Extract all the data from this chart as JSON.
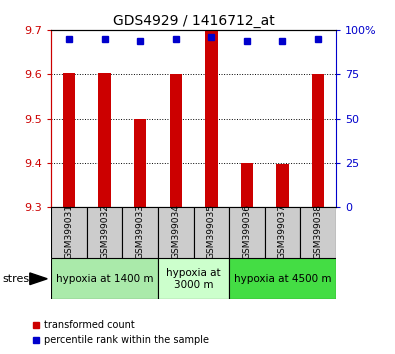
{
  "title": "GDS4929 / 1416712_at",
  "samples": [
    "GSM399031",
    "GSM399032",
    "GSM399033",
    "GSM399034",
    "GSM399035",
    "GSM399036",
    "GSM399037",
    "GSM399038"
  ],
  "transformed_counts": [
    9.604,
    9.604,
    9.498,
    9.6,
    9.697,
    9.4,
    9.398,
    9.6
  ],
  "percentile_ranks": [
    95,
    95,
    94,
    95,
    96,
    94,
    94,
    95
  ],
  "ymin": 9.3,
  "ymax": 9.7,
  "yticks": [
    9.3,
    9.4,
    9.5,
    9.6,
    9.7
  ],
  "right_yticks": [
    0,
    25,
    50,
    75,
    100
  ],
  "bar_color": "#cc0000",
  "dot_color": "#0000cc",
  "groups": [
    {
      "label": "hypoxia at 1400 m",
      "samples": [
        0,
        1,
        2
      ],
      "color": "#aaeaaa"
    },
    {
      "label": "hypoxia at\n3000 m",
      "samples": [
        3,
        4
      ],
      "color": "#ccffcc"
    },
    {
      "label": "hypoxia at 4500 m",
      "samples": [
        5,
        6,
        7
      ],
      "color": "#44dd44"
    }
  ],
  "stress_label": "stress",
  "left_axis_color": "#cc0000",
  "right_axis_color": "#0000cc",
  "sample_box_color": "#cccccc",
  "bar_width": 0.35
}
